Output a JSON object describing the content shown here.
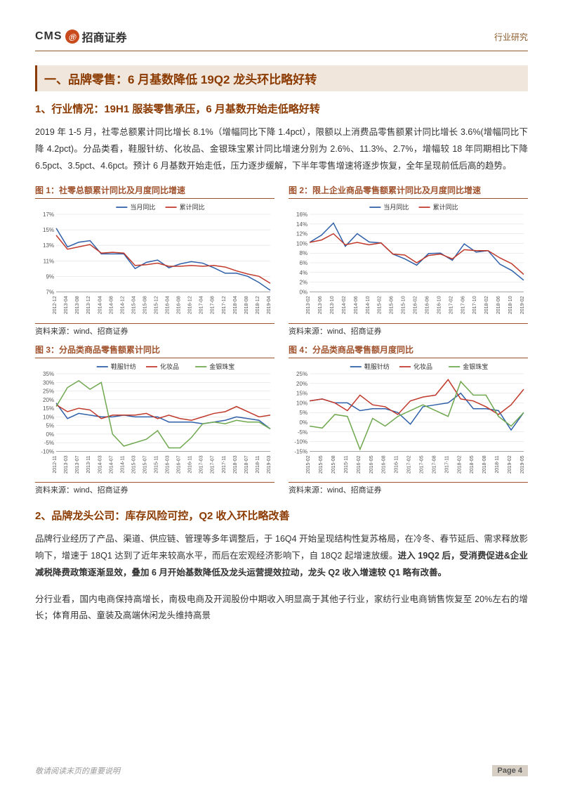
{
  "header": {
    "logo_cms": "CMS",
    "logo_icon": "⑪",
    "logo_cn": "招商证券",
    "right_text": "行业研究"
  },
  "section_title": "一、品牌零售：6 月基数降低 19Q2 龙头环比略好转",
  "subtitle1": "1、行业情况：19H1 服装零售承压，6 月基数开始走低略好转",
  "para1": "2019 年 1-5 月，社零总额累计同比增长 8.1%（增幅同比下降 1.4pct），限额以上消费品零售额累计同比增长 3.6%(增幅同比下降 4.2pct)。分品类看，鞋服针纺、化妆品、金银珠宝累计同比增速分别为 2.6%、11.3%、2.7%，增幅较 18 年同期相比下降 6.5pct、3.5pct、4.6pct。预计 6 月基数开始走低，压力逐步缓解，下半年零售增速将逐步恢复，全年呈现前低后高的趋势。",
  "charts": {
    "fig1": {
      "title": "图 1：社零总额累计同比及月度同比增速",
      "legend": [
        "当月同比",
        "累计同比"
      ],
      "series_colors": [
        "#2e5fa8",
        "#c0392b"
      ],
      "x_labels": [
        "2012-12",
        "2013-04",
        "2013-08",
        "2013-12",
        "2014-04",
        "2014-08",
        "2014-12",
        "2015-04",
        "2015-08",
        "2015-12",
        "2016-04",
        "2016-08",
        "2016-12",
        "2017-04",
        "2017-08",
        "2017-12",
        "2018-04",
        "2018-08",
        "2018-12",
        "2019-04"
      ],
      "y_ticks": [
        "7%",
        "9%",
        "11%",
        "13%",
        "15%",
        "17%"
      ],
      "ylim": [
        7,
        17
      ],
      "series_a": [
        15.2,
        12.8,
        13.4,
        13.6,
        11.9,
        11.9,
        11.9,
        10.0,
        10.8,
        11.1,
        10.1,
        10.6,
        10.9,
        10.7,
        10.1,
        9.4,
        9.4,
        9.0,
        8.2,
        7.2
      ],
      "series_b": [
        14.3,
        12.5,
        12.8,
        13.1,
        12.0,
        12.1,
        12.0,
        10.4,
        10.5,
        10.7,
        10.3,
        10.3,
        10.4,
        10.3,
        10.4,
        10.2,
        9.7,
        9.3,
        9.0,
        8.1
      ]
    },
    "fig2": {
      "title": "图 2：限上企业商品零售额累计同比及月度同比增速",
      "legend": [
        "当月同比",
        "累计同比"
      ],
      "series_colors": [
        "#2e5fa8",
        "#c0392b"
      ],
      "x_labels": [
        "2013-02",
        "2013-06",
        "2013-10",
        "2014-02",
        "2014-06",
        "2014-10",
        "2015-02",
        "2015-06",
        "2015-10",
        "2016-02",
        "2016-06",
        "2016-10",
        "2017-02",
        "2017-06",
        "2017-10",
        "2018-02",
        "2018-06",
        "2018-10",
        "2019-02"
      ],
      "y_ticks": [
        "0%",
        "2%",
        "4%",
        "6%",
        "8%",
        "10%",
        "12%",
        "14%",
        "16%"
      ],
      "ylim": [
        0,
        16
      ],
      "series_a": [
        10.2,
        11.7,
        14.2,
        9.4,
        12.0,
        10.3,
        10.1,
        7.8,
        6.8,
        5.5,
        7.9,
        8.0,
        6.5,
        9.9,
        8.2,
        8.5,
        5.7,
        4.4,
        2.4
      ],
      "series_b": [
        10.2,
        10.7,
        12.0,
        9.7,
        10.2,
        9.7,
        10.1,
        7.8,
        7.6,
        6.0,
        7.5,
        7.8,
        6.8,
        8.7,
        8.5,
        8.5,
        7.0,
        5.8,
        3.6
      ]
    },
    "fig3": {
      "title": "图 3：分品类商品零售额累计同比",
      "legend": [
        "鞋服针纺",
        "化妆品",
        "金银珠宝"
      ],
      "series_colors": [
        "#2e5fa8",
        "#c0392b",
        "#6fa84f"
      ],
      "x_labels": [
        "2012-11",
        "2013-03",
        "2013-07",
        "2013-11",
        "2014-03",
        "2014-07",
        "2014-11",
        "2015-03",
        "2015-07",
        "2015-11",
        "2016-03",
        "2016-07",
        "2016-11",
        "2017-03",
        "2017-07",
        "2017-11",
        "2018-03",
        "2018-07",
        "2018-11",
        "2019-03"
      ],
      "y_ticks": [
        "-10%",
        "-5%",
        "0%",
        "5%",
        "10%",
        "15%",
        "20%",
        "25%",
        "30%",
        "35%"
      ],
      "ylim": [
        -10,
        35
      ],
      "series_a": [
        18,
        9,
        12,
        11,
        10,
        10,
        11,
        10,
        10,
        10,
        7,
        7,
        7,
        6,
        7,
        8,
        10,
        9,
        8,
        3
      ],
      "series_b": [
        17,
        13,
        15,
        14,
        9,
        11,
        11,
        11,
        12,
        9,
        11,
        9,
        8,
        10,
        12,
        13,
        16,
        13,
        10,
        11
      ],
      "series_c": [
        16,
        27,
        31,
        26,
        30,
        0,
        -7,
        -5,
        -3,
        2,
        -8,
        -8,
        -2,
        6,
        7,
        6,
        8,
        7,
        7,
        3
      ]
    },
    "fig4": {
      "title": "图 4：分品类商品零售额月度同比",
      "legend": [
        "鞋服针纺",
        "化妆品",
        "金银珠宝"
      ],
      "series_colors": [
        "#2e5fa8",
        "#c0392b",
        "#6fa84f"
      ],
      "x_labels": [
        "2015-02",
        "2015-05",
        "2015-08",
        "2015-11",
        "2016-02",
        "2016-05",
        "2016-08",
        "2016-11",
        "2017-02",
        "2017-05",
        "2017-08",
        "2017-11",
        "2018-02",
        "2018-05",
        "2018-08",
        "2018-11",
        "2019-02",
        "2019-05"
      ],
      "y_ticks": [
        "-15%",
        "-10%",
        "-5%",
        "0%",
        "5%",
        "10%",
        "15%",
        "20%",
        "25%"
      ],
      "ylim": [
        -15,
        25
      ],
      "series_a": [
        11,
        12,
        10,
        10,
        6,
        7,
        7,
        5,
        -1,
        8,
        9,
        10,
        15,
        7,
        7,
        6,
        -4,
        5
      ],
      "series_b": [
        11,
        12,
        10,
        6,
        14,
        9,
        8,
        4,
        11,
        13,
        14,
        22,
        12,
        11,
        8,
        4,
        9,
        17
      ],
      "series_c": [
        -2,
        -3,
        4,
        3,
        -14,
        2,
        -2,
        3,
        6,
        9,
        6,
        3,
        21,
        14,
        14,
        3,
        -2,
        5
      ]
    },
    "source": "资料来源：wind、招商证券"
  },
  "subtitle2": "2、品牌龙头公司：库存风险可控，Q2 收入环比略改善",
  "para2_pre": "品牌行业经历了产品、渠道、供应链、管理等多年调整后，于 16Q4 开始呈现结构性复苏格局，在冷冬、春节延后、需求释放影响下，增速于 18Q1 达到了近年来较高水平，而后在宏观经济影响下，自 18Q2 起增速放缓。",
  "para2_bold": "进入 19Q2 后，受消费促进&企业减税降费政策逐渐显效，叠加 6 月开始基数降低及龙头运营提效拉动，龙头 Q2 收入增速较 Q1 略有改善。",
  "para3": "分行业看，国内电商保持高增长，南极电商及开润股份中期收入明显高于其他子行业，家纺行业电商销售恢复至 20%左右的增长；体育用品、童装及高端休闲龙头维持高景",
  "footer": {
    "left": "敬请阅读末页的重要说明",
    "page_label": "Page 4"
  },
  "style": {
    "accent_color": "#8b3a00",
    "title_bg": "#f0e6dc",
    "border_color": "#a0522d",
    "text_color": "#333333",
    "grid_color": "#d9d9d9",
    "axis_color": "#888888"
  }
}
